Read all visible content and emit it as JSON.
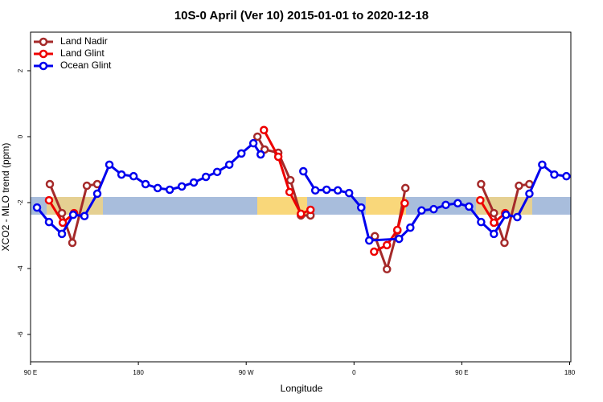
{
  "chart_data": {
    "type": "line",
    "title": "10S-0 April (Ver 10)   2015-01-01 to 2020-12-18",
    "x_label": "Longitude",
    "y_label": "XCO2 - MLO trend (ppm)",
    "xlim": [
      90,
      541
    ],
    "xticks": [
      {
        "value": 90,
        "label": "90 E"
      },
      {
        "value": 180,
        "label": "180"
      },
      {
        "value": 270,
        "label": "90 W"
      },
      {
        "value": 360,
        "label": "0"
      },
      {
        "value": 450,
        "label": "90 E"
      },
      {
        "value": 540,
        "label": "180"
      }
    ],
    "ylim": [
      -6.83,
      3.17
    ],
    "yticks": [
      2,
      0,
      -2,
      -4,
      -6
    ],
    "legend": "top-left",
    "series": [
      {
        "name": "Land Nadir",
        "color": "#a52a2a",
        "x": [
          106.1,
          116.2,
          124.9,
          137.0,
          145.7,
          null,
          279.4,
          285.4,
          296.8,
          306.9,
          315.7,
          323.7,
          null,
          377.4,
          387.5,
          396.2,
          402.9,
          null,
          466.1,
          476.8,
          485.6,
          497.7,
          506.4
        ],
        "values": [
          -1.44,
          -2.32,
          -3.22,
          -1.49,
          -1.44,
          null,
          0.0,
          -0.39,
          -0.49,
          -1.32,
          -2.39,
          -2.39,
          null,
          -3.02,
          -4.02,
          -2.85,
          -1.56,
          null,
          -1.44,
          -2.32,
          -3.22,
          -1.49,
          -1.44
        ]
      },
      {
        "name": "Land Glint",
        "color": "#ee0000",
        "x": [
          105.4,
          116.9,
          126.3,
          null,
          284.8,
          296.8,
          306.2,
          315.7,
          323.7,
          null,
          376.8,
          387.5,
          396.2,
          402.3,
          null,
          465.4,
          476.8,
          486.2
        ],
        "values": [
          -1.93,
          -2.61,
          -2.32,
          null,
          0.2,
          -0.61,
          -1.68,
          -2.34,
          -2.22,
          null,
          -3.49,
          -3.29,
          -2.83,
          -2.02,
          null,
          -1.93,
          -2.61,
          -2.32
        ]
      },
      {
        "name": "Ocean Glint",
        "color": "#0000ee",
        "x": [
          95.4,
          105.4,
          116.2,
          125.6,
          135.0,
          145.7,
          155.8,
          165.9,
          176.0,
          186.0,
          196.1,
          206.2,
          216.3,
          226.3,
          236.4,
          245.8,
          255.9,
          266.0,
          276.0,
          282.1,
          null,
          317.7,
          327.7,
          337.1,
          346.5,
          355.9,
          366.0,
          372.7,
          397.6,
          407.0,
          416.4,
          426.5,
          436.6,
          446.6,
          456.0,
          466.1,
          476.8,
          486.9,
          496.3,
          506.4,
          517.1,
          527.2,
          537.3
        ],
        "values": [
          -2.15,
          -2.59,
          -2.95,
          -2.37,
          -2.41,
          -1.73,
          -0.85,
          -1.15,
          -1.2,
          -1.44,
          -1.56,
          -1.61,
          -1.51,
          -1.39,
          -1.22,
          -1.07,
          -0.85,
          -0.51,
          -0.2,
          -0.54,
          null,
          -1.05,
          -1.63,
          -1.61,
          -1.63,
          -1.71,
          -2.15,
          -3.15,
          -3.1,
          -2.76,
          -2.24,
          -2.2,
          -2.07,
          -2.02,
          -2.12,
          -2.59,
          -2.95,
          -2.37,
          -2.44,
          -1.73,
          -0.85,
          -1.15,
          -1.2
        ]
      }
    ]
  }
}
